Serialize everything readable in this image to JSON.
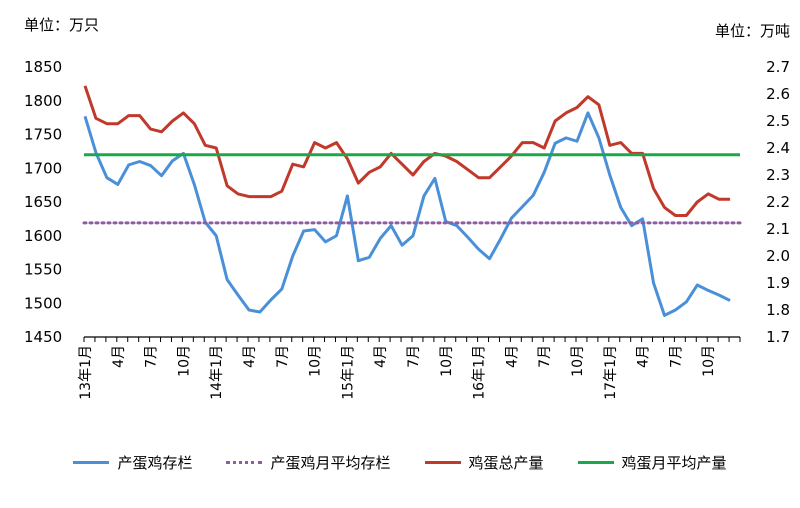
{
  "units": {
    "left": "单位：万只",
    "right": "单位：万吨"
  },
  "colors": {
    "stock": "#4a90d9",
    "stock_avg": "#8e5ea2",
    "output": "#c0392b",
    "output_avg": "#1aa84a"
  },
  "legend": [
    {
      "key": "stock",
      "label": "产蛋鸡存栏",
      "style": "solid"
    },
    {
      "key": "stock_avg",
      "label": "产蛋鸡月平均存栏",
      "style": "dotted"
    },
    {
      "key": "output",
      "label": "鸡蛋总产量",
      "style": "solid"
    },
    {
      "key": "output_avg",
      "label": "鸡蛋月平均产量",
      "style": "solid"
    }
  ],
  "chart_data": {
    "type": "line",
    "title": "",
    "x_tick_labels": [
      "13年1月",
      "4月",
      "7月",
      "10月",
      "14年1月",
      "4月",
      "7月",
      "10月",
      "15年1月",
      "4月",
      "7月",
      "10月",
      "16年1月",
      "4月",
      "7月",
      "10月",
      "17年1月",
      "4月",
      "7月",
      "10月"
    ],
    "x_tick_step": 3,
    "y_left": {
      "label": "单位：万只",
      "min": 1450,
      "max": 1850,
      "step": 50,
      "ticks": [
        "1450",
        "1500",
        "1550",
        "1600",
        "1650",
        "1700",
        "1750",
        "1800",
        "1850"
      ]
    },
    "y_right": {
      "label": "单位：万吨",
      "min": 1.7,
      "max": 2.7,
      "step": 0.1,
      "ticks": [
        "1.7",
        "1.8",
        "1.9",
        "2.0",
        "2.1",
        "2.2",
        "2.3",
        "2.4",
        "2.5",
        "2.6",
        "2.7"
      ]
    },
    "series": [
      {
        "name": "产蛋鸡存栏",
        "axis": "left",
        "color": "#4a90d9",
        "style": "solid",
        "values": [
          1777,
          1723,
          1686,
          1676,
          1705,
          1710,
          1704,
          1689,
          1711,
          1722,
          1676,
          1620,
          1600,
          1535,
          1512,
          1490,
          1487,
          1505,
          1521,
          1570,
          1607,
          1609,
          1591,
          1600,
          1659,
          1563,
          1568,
          1596,
          1615,
          1586,
          1600,
          1659,
          1685,
          1621,
          1615,
          1598,
          1580,
          1566,
          1595,
          1626,
          1643,
          1660,
          1694,
          1737,
          1745,
          1740,
          1782,
          1745,
          1690,
          1642,
          1615,
          1625,
          1530,
          1482,
          1490,
          1502,
          1527,
          1519,
          1512,
          1504
        ]
      },
      {
        "name": "产蛋鸡月平均存栏",
        "axis": "left",
        "color": "#8e5ea2",
        "style": "dotted",
        "constant": 1619
      },
      {
        "name": "鸡蛋总产量",
        "axis": "right",
        "color": "#c0392b",
        "style": "solid",
        "values": [
          2.63,
          2.51,
          2.49,
          2.49,
          2.52,
          2.52,
          2.47,
          2.46,
          2.5,
          2.53,
          2.49,
          2.41,
          2.4,
          2.26,
          2.23,
          2.22,
          2.22,
          2.22,
          2.24,
          2.34,
          2.33,
          2.42,
          2.4,
          2.42,
          2.36,
          2.27,
          2.31,
          2.33,
          2.38,
          2.34,
          2.3,
          2.35,
          2.38,
          2.37,
          2.35,
          2.32,
          2.29,
          2.29,
          2.33,
          2.37,
          2.42,
          2.42,
          2.4,
          2.5,
          2.53,
          2.55,
          2.59,
          2.56,
          2.41,
          2.42,
          2.38,
          2.38,
          2.25,
          2.18,
          2.15,
          2.15,
          2.2,
          2.23,
          2.21,
          2.21
        ]
      },
      {
        "name": "鸡蛋月平均产量",
        "axis": "right",
        "color": "#1aa84a",
        "style": "solid",
        "constant": 2.375
      }
    ],
    "grid": false,
    "legend_position": "bottom"
  }
}
